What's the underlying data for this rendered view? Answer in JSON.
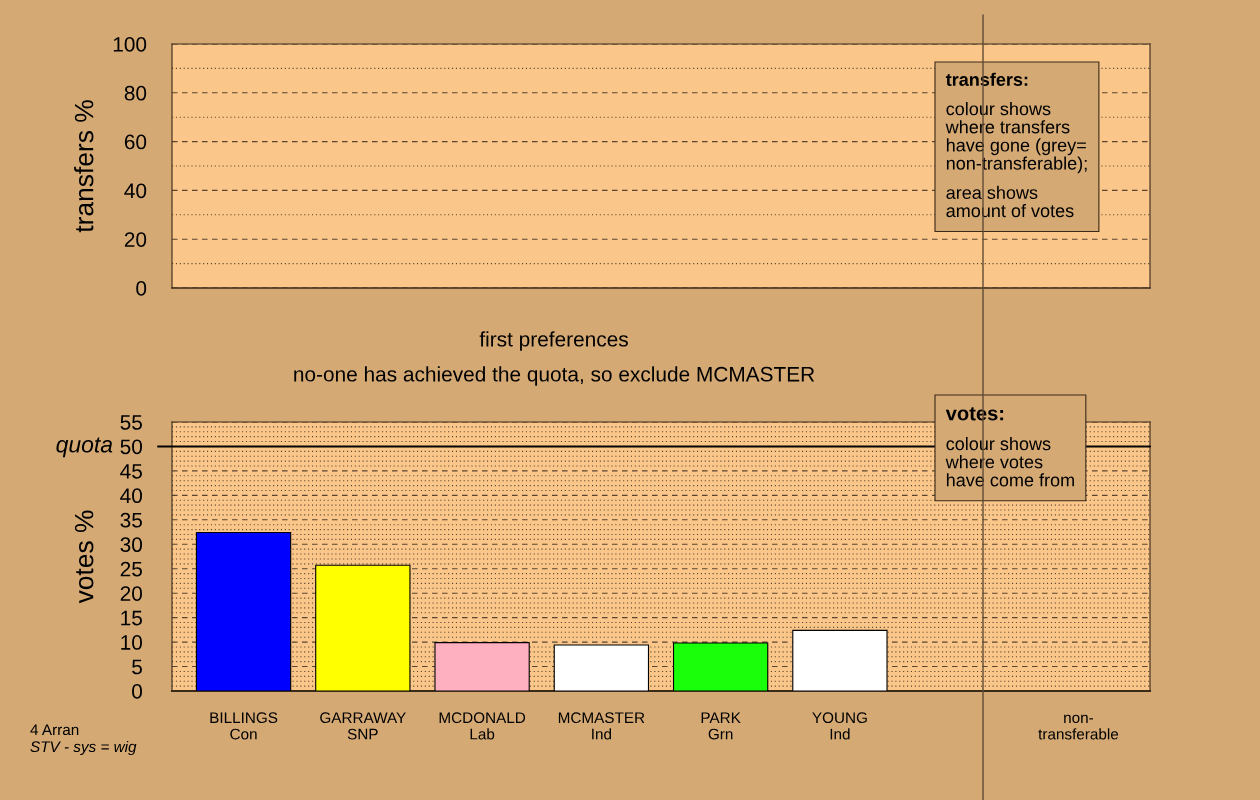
{
  "chart_data": [
    {
      "type": "bar",
      "ylabel": "transfers %",
      "categories": [
        null,
        null,
        null,
        null,
        null,
        null,
        null,
        null
      ],
      "values": [
        null,
        null,
        null,
        null,
        null,
        null,
        null,
        null
      ],
      "ylim": [
        0,
        100
      ],
      "yticks": [
        0,
        {
          "value": 10,
          "label": null
        },
        20,
        {
          "value": 30,
          "label": null
        },
        40,
        {
          "value": 50,
          "label": null
        },
        60,
        {
          "value": 70,
          "label": null
        },
        80,
        {
          "value": 90,
          "label": null
        },
        100
      ],
      "grid": "y",
      "tick_labels": "y",
      "annotations": [
        "transfers:",
        "colour shows\nwhere transfers\nhave gone (grey=\nnon-transferable);",
        "area shows\namount of votes"
      ]
    },
    {
      "type": "bar",
      "title": "first preferences",
      "subtitle": "no-one has achieved the quota, so exclude MCMASTER",
      "ylabel": "votes %",
      "categories": [
        "BILLINGS\nCon",
        "GARRAWAY\nSNP",
        "MCDONALD\nLab",
        "MCMASTER\nInd",
        "PARK\nGrn",
        "YOUNG\nInd",
        null,
        "non-\ntransferable"
      ],
      "values": [
        32.4,
        25.7,
        9.9,
        9.4,
        9.8,
        12.4,
        null,
        null
      ],
      "colors": [
        "#0000ff",
        "#ffff00",
        "#ffb0c0",
        "#ffffff",
        "#1aff0a",
        "#ffffff",
        null,
        null
      ],
      "ylim": [
        0,
        55
      ],
      "yticks": [
        0,
        {
          "value": 1,
          "label": null
        },
        {
          "value": 2,
          "label": null
        },
        {
          "value": 3,
          "label": null
        },
        {
          "value": 4,
          "label": null
        },
        5,
        {
          "value": 6,
          "label": null
        },
        {
          "value": 7,
          "label": null
        },
        {
          "value": 8,
          "label": null
        },
        {
          "value": 9,
          "label": null
        },
        10,
        {
          "value": 11,
          "label": null
        },
        {
          "value": 12,
          "label": null
        },
        {
          "value": 13,
          "label": null
        },
        {
          "value": 14,
          "label": null
        },
        15,
        {
          "value": 16,
          "label": null
        },
        {
          "value": 17,
          "label": null
        },
        {
          "value": 18,
          "label": null
        },
        {
          "value": 19,
          "label": null
        },
        20,
        {
          "value": 21,
          "label": null
        },
        {
          "value": 22,
          "label": null
        },
        {
          "value": 23,
          "label": null
        },
        {
          "value": 24,
          "label": null
        },
        25,
        {
          "value": 26,
          "label": null
        },
        {
          "value": 27,
          "label": null
        },
        {
          "value": 28,
          "label": null
        },
        {
          "value": 29,
          "label": null
        },
        30,
        {
          "value": 31,
          "label": null
        },
        {
          "value": 32,
          "label": null
        },
        {
          "value": 33,
          "label": null
        },
        {
          "value": 34,
          "label": null
        },
        35,
        {
          "value": 36,
          "label": null
        },
        {
          "value": 37,
          "label": null
        },
        {
          "value": 38,
          "label": null
        },
        {
          "value": 39,
          "label": null
        },
        40,
        {
          "value": 41,
          "label": null
        },
        {
          "value": 42,
          "label": null
        },
        {
          "value": 43,
          "label": null
        },
        {
          "value": 44,
          "label": null
        },
        45,
        {
          "value": 46,
          "label": null
        },
        {
          "value": 47,
          "label": null
        },
        {
          "value": 48,
          "label": null
        },
        {
          "value": 49,
          "label": null
        },
        50,
        {
          "value": 51,
          "label": null
        },
        {
          "value": 52,
          "label": null
        },
        {
          "value": 53,
          "label": null
        },
        {
          "value": 54,
          "label": null
        },
        55
      ],
      "grid": "y",
      "ref_lines": [
        {
          "axis": "y",
          "value": 50,
          "label": "quota",
          "color": "#000000"
        }
      ],
      "annotations": [
        "votes:",
        "colour shows\nwhere votes\nhave come from",
        "4 Arran",
        "STV - sys = wig"
      ]
    }
  ]
}
